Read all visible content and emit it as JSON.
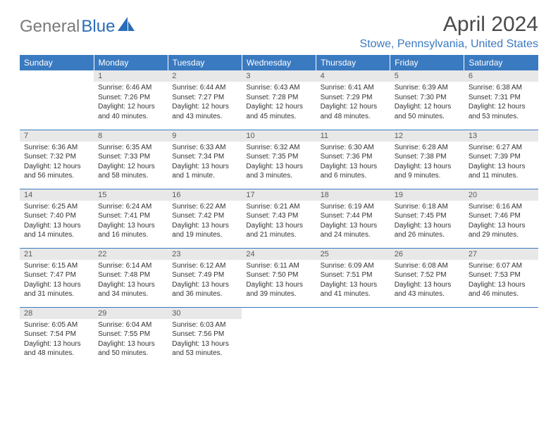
{
  "brand": {
    "gray": "General",
    "blue": "Blue"
  },
  "title": "April 2024",
  "location": "Stowe, Pennsylvania, United States",
  "colors": {
    "header_bg": "#3a7ac0",
    "header_text": "#ffffff",
    "daynum_bg": "#e8e8e8",
    "daynum_text": "#5a5a5a",
    "body_text": "#333333",
    "rule": "#3a7ac0",
    "logo_gray": "#7a7a7a",
    "logo_blue": "#2a6db8",
    "location_color": "#3a7ac0",
    "title_color": "#4a4a4a"
  },
  "typography": {
    "title_fontsize": 30,
    "location_fontsize": 16,
    "header_fontsize": 12,
    "daynum_fontsize": 11,
    "body_fontsize": 10
  },
  "daysOfWeek": [
    "Sunday",
    "Monday",
    "Tuesday",
    "Wednesday",
    "Thursday",
    "Friday",
    "Saturday"
  ],
  "weeks": [
    [
      {
        "empty": true
      },
      {
        "n": "1",
        "sr": "6:46 AM",
        "ss": "7:26 PM",
        "dl": "12 hours and 40 minutes."
      },
      {
        "n": "2",
        "sr": "6:44 AM",
        "ss": "7:27 PM",
        "dl": "12 hours and 43 minutes."
      },
      {
        "n": "3",
        "sr": "6:43 AM",
        "ss": "7:28 PM",
        "dl": "12 hours and 45 minutes."
      },
      {
        "n": "4",
        "sr": "6:41 AM",
        "ss": "7:29 PM",
        "dl": "12 hours and 48 minutes."
      },
      {
        "n": "5",
        "sr": "6:39 AM",
        "ss": "7:30 PM",
        "dl": "12 hours and 50 minutes."
      },
      {
        "n": "6",
        "sr": "6:38 AM",
        "ss": "7:31 PM",
        "dl": "12 hours and 53 minutes."
      }
    ],
    [
      {
        "n": "7",
        "sr": "6:36 AM",
        "ss": "7:32 PM",
        "dl": "12 hours and 56 minutes."
      },
      {
        "n": "8",
        "sr": "6:35 AM",
        "ss": "7:33 PM",
        "dl": "12 hours and 58 minutes."
      },
      {
        "n": "9",
        "sr": "6:33 AM",
        "ss": "7:34 PM",
        "dl": "13 hours and 1 minute."
      },
      {
        "n": "10",
        "sr": "6:32 AM",
        "ss": "7:35 PM",
        "dl": "13 hours and 3 minutes."
      },
      {
        "n": "11",
        "sr": "6:30 AM",
        "ss": "7:36 PM",
        "dl": "13 hours and 6 minutes."
      },
      {
        "n": "12",
        "sr": "6:28 AM",
        "ss": "7:38 PM",
        "dl": "13 hours and 9 minutes."
      },
      {
        "n": "13",
        "sr": "6:27 AM",
        "ss": "7:39 PM",
        "dl": "13 hours and 11 minutes."
      }
    ],
    [
      {
        "n": "14",
        "sr": "6:25 AM",
        "ss": "7:40 PM",
        "dl": "13 hours and 14 minutes."
      },
      {
        "n": "15",
        "sr": "6:24 AM",
        "ss": "7:41 PM",
        "dl": "13 hours and 16 minutes."
      },
      {
        "n": "16",
        "sr": "6:22 AM",
        "ss": "7:42 PM",
        "dl": "13 hours and 19 minutes."
      },
      {
        "n": "17",
        "sr": "6:21 AM",
        "ss": "7:43 PM",
        "dl": "13 hours and 21 minutes."
      },
      {
        "n": "18",
        "sr": "6:19 AM",
        "ss": "7:44 PM",
        "dl": "13 hours and 24 minutes."
      },
      {
        "n": "19",
        "sr": "6:18 AM",
        "ss": "7:45 PM",
        "dl": "13 hours and 26 minutes."
      },
      {
        "n": "20",
        "sr": "6:16 AM",
        "ss": "7:46 PM",
        "dl": "13 hours and 29 minutes."
      }
    ],
    [
      {
        "n": "21",
        "sr": "6:15 AM",
        "ss": "7:47 PM",
        "dl": "13 hours and 31 minutes."
      },
      {
        "n": "22",
        "sr": "6:14 AM",
        "ss": "7:48 PM",
        "dl": "13 hours and 34 minutes."
      },
      {
        "n": "23",
        "sr": "6:12 AM",
        "ss": "7:49 PM",
        "dl": "13 hours and 36 minutes."
      },
      {
        "n": "24",
        "sr": "6:11 AM",
        "ss": "7:50 PM",
        "dl": "13 hours and 39 minutes."
      },
      {
        "n": "25",
        "sr": "6:09 AM",
        "ss": "7:51 PM",
        "dl": "13 hours and 41 minutes."
      },
      {
        "n": "26",
        "sr": "6:08 AM",
        "ss": "7:52 PM",
        "dl": "13 hours and 43 minutes."
      },
      {
        "n": "27",
        "sr": "6:07 AM",
        "ss": "7:53 PM",
        "dl": "13 hours and 46 minutes."
      }
    ],
    [
      {
        "n": "28",
        "sr": "6:05 AM",
        "ss": "7:54 PM",
        "dl": "13 hours and 48 minutes."
      },
      {
        "n": "29",
        "sr": "6:04 AM",
        "ss": "7:55 PM",
        "dl": "13 hours and 50 minutes."
      },
      {
        "n": "30",
        "sr": "6:03 AM",
        "ss": "7:56 PM",
        "dl": "13 hours and 53 minutes."
      },
      {
        "empty": true
      },
      {
        "empty": true
      },
      {
        "empty": true
      },
      {
        "empty": true
      }
    ]
  ],
  "labels": {
    "sunrise": "Sunrise:",
    "sunset": "Sunset:",
    "daylight": "Daylight:"
  }
}
